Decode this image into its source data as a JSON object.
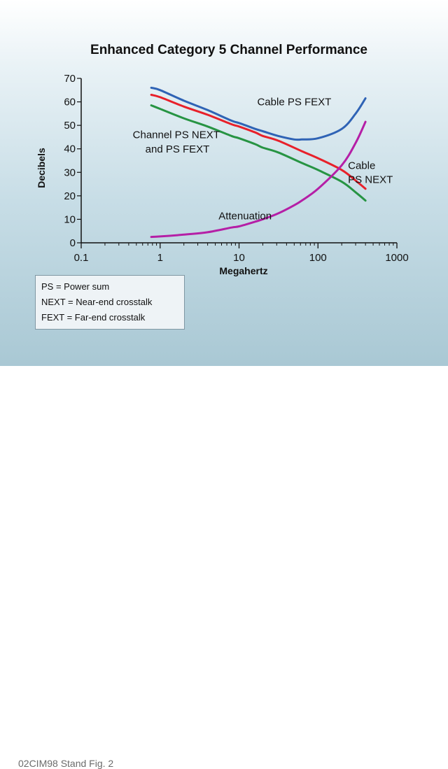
{
  "caption": "02CIM98 Stand Fig. 2",
  "chart_data": {
    "type": "line",
    "title": "Enhanced Category 5 Channel Performance",
    "xlabel": "Megahertz",
    "ylabel": "Decibels",
    "xscale": "log",
    "xlim": [
      0.1,
      1000
    ],
    "ylim": [
      0,
      70
    ],
    "xticks": [
      "0.1",
      "1",
      "10",
      "100",
      "1000"
    ],
    "yticks": [
      "0",
      "10",
      "20",
      "30",
      "40",
      "50",
      "60",
      "70"
    ],
    "grid": false,
    "series": [
      {
        "key": "cable_ps_fext",
        "color": "#2f63b5",
        "x": [
          0.772,
          1,
          2,
          4,
          8,
          10,
          16,
          20,
          31.25,
          50,
          62.5,
          100,
          200,
          300,
          400
        ],
        "y": [
          66,
          65,
          60.5,
          56.5,
          52,
          51,
          48.5,
          47.5,
          45.5,
          44,
          44,
          44.5,
          48.5,
          55,
          61.5
        ]
      },
      {
        "key": "channel_ps_next_fext",
        "color": "#e8202a",
        "x": [
          0.772,
          1,
          2,
          4,
          8,
          10,
          16,
          20,
          31.25,
          62.5,
          100,
          200,
          300,
          400
        ],
        "y": [
          63,
          62,
          58,
          54.5,
          50.5,
          49.5,
          47,
          45.5,
          43.5,
          39,
          36,
          31,
          26.5,
          23
        ]
      },
      {
        "key": "channel_lower",
        "color": "#279443",
        "x": [
          0.772,
          1,
          2,
          4,
          8,
          10,
          16,
          20,
          31.25,
          62.5,
          100,
          200,
          300,
          400
        ],
        "y": [
          58.5,
          57,
          53,
          49.5,
          45.5,
          44.5,
          42,
          40.5,
          38.5,
          34,
          31,
          26,
          21.5,
          18
        ]
      },
      {
        "key": "cable_ps_next",
        "color": "#b51fa6",
        "x": [
          0.772,
          1,
          2,
          4,
          8,
          10,
          16,
          20,
          31.25,
          50,
          62.5,
          100,
          200,
          300,
          400
        ],
        "y": [
          2.5,
          2.7,
          3.5,
          4.5,
          6.5,
          7,
          9,
          10,
          12.5,
          16,
          18,
          23,
          33,
          42.5,
          51.5
        ]
      }
    ],
    "annotations": [
      {
        "text": "Cable PS FEXT",
        "x": 17,
        "y": 58.5,
        "anchor": "start"
      },
      {
        "text": "Channel PS NEXT",
        "x": 0.45,
        "y": 44.5,
        "anchor": "start"
      },
      {
        "text": "and PS FEXT",
        "x": 0.65,
        "y": 38.5,
        "anchor": "start"
      },
      {
        "text": "Cable",
        "x": 240,
        "y": 31.5,
        "anchor": "start"
      },
      {
        "text": "PS NEXT",
        "x": 240,
        "y": 25.5,
        "anchor": "start"
      },
      {
        "text": "Attenuation",
        "x": 5.5,
        "y": 10,
        "anchor": "start"
      }
    ]
  },
  "legend": {
    "items": [
      "PS = Power sum",
      "NEXT = Near-end crosstalk",
      "FEXT = Far-end crosstalk"
    ]
  }
}
